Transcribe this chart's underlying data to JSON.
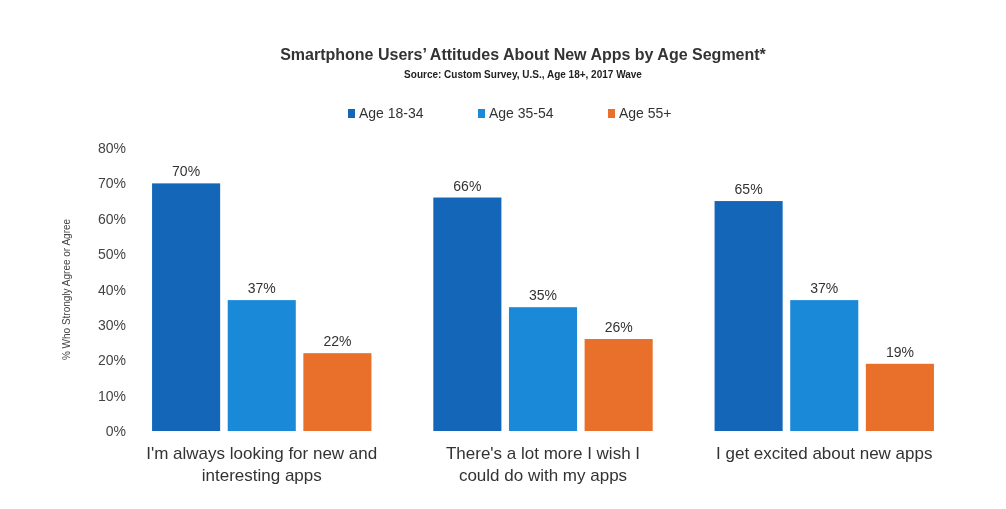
{
  "chart_data": {
    "type": "bar",
    "title": "Smartphone Users’ Attitudes About New Apps by Age Segment*",
    "subtitle": "Source: Custom Survey, U.S., Age 18+, 2017 Wave",
    "ylabel": "% Who Strongly Agree or Agree",
    "categories": [
      "I'm always looking for new and interesting apps",
      "There's a lot more I wish I could do with my apps",
      "I get excited about new apps"
    ],
    "series": [
      {
        "name": "Age 18-34",
        "color": "#1466b8",
        "values": [
          70,
          66,
          65
        ],
        "value_labels": [
          "70%",
          "66%",
          "65%"
        ]
      },
      {
        "name": "Age 35-54",
        "color": "#1a8ad8",
        "values": [
          37,
          35,
          37
        ],
        "value_labels": [
          "37%",
          "35%",
          "37%"
        ]
      },
      {
        "name": "Age 55+",
        "color": "#e8702a",
        "values": [
          22,
          26,
          19
        ],
        "value_labels": [
          "22%",
          "26%",
          "19%"
        ]
      }
    ],
    "ylim": [
      0,
      80
    ],
    "yticks": [
      {
        "value": 0,
        "label": "0%"
      },
      {
        "value": 10,
        "label": "10%"
      },
      {
        "value": 20,
        "label": "20%"
      },
      {
        "value": 30,
        "label": "30%"
      },
      {
        "value": 40,
        "label": "40%"
      },
      {
        "value": 50,
        "label": "50%"
      },
      {
        "value": 60,
        "label": "60%"
      },
      {
        "value": 70,
        "label": "70%"
      },
      {
        "value": 80,
        "label": "80%"
      }
    ],
    "grid": false,
    "legend": "top"
  }
}
